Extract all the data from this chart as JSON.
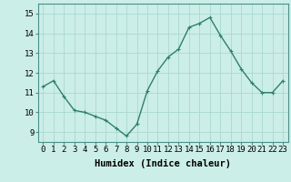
{
  "x": [
    0,
    1,
    2,
    3,
    4,
    5,
    6,
    7,
    8,
    9,
    10,
    11,
    12,
    13,
    14,
    15,
    16,
    17,
    18,
    19,
    20,
    21,
    22,
    23
  ],
  "y": [
    11.3,
    11.6,
    10.8,
    10.1,
    10.0,
    9.8,
    9.6,
    9.2,
    8.8,
    9.4,
    11.1,
    12.1,
    12.8,
    13.2,
    14.3,
    14.5,
    14.8,
    13.9,
    13.1,
    12.2,
    11.5,
    11.0,
    11.0,
    11.6
  ],
  "line_color": "#2e7f6e",
  "marker": "+",
  "markersize": 3,
  "linewidth": 1.0,
  "bg_color": "#cceee8",
  "grid_color": "#aad8d0",
  "xlabel": "Humidex (Indice chaleur)",
  "xlabel_fontsize": 7.5,
  "ylabel_ticks": [
    9,
    10,
    11,
    12,
    13,
    14,
    15
  ],
  "ylim": [
    8.5,
    15.5
  ],
  "xlim": [
    -0.5,
    23.5
  ],
  "tick_fontsize": 6.5,
  "xtick_labels": [
    "0",
    "1",
    "2",
    "3",
    "4",
    "5",
    "6",
    "7",
    "8",
    "9",
    "10",
    "11",
    "12",
    "13",
    "14",
    "15",
    "16",
    "17",
    "18",
    "19",
    "20",
    "21",
    "22",
    "23"
  ]
}
